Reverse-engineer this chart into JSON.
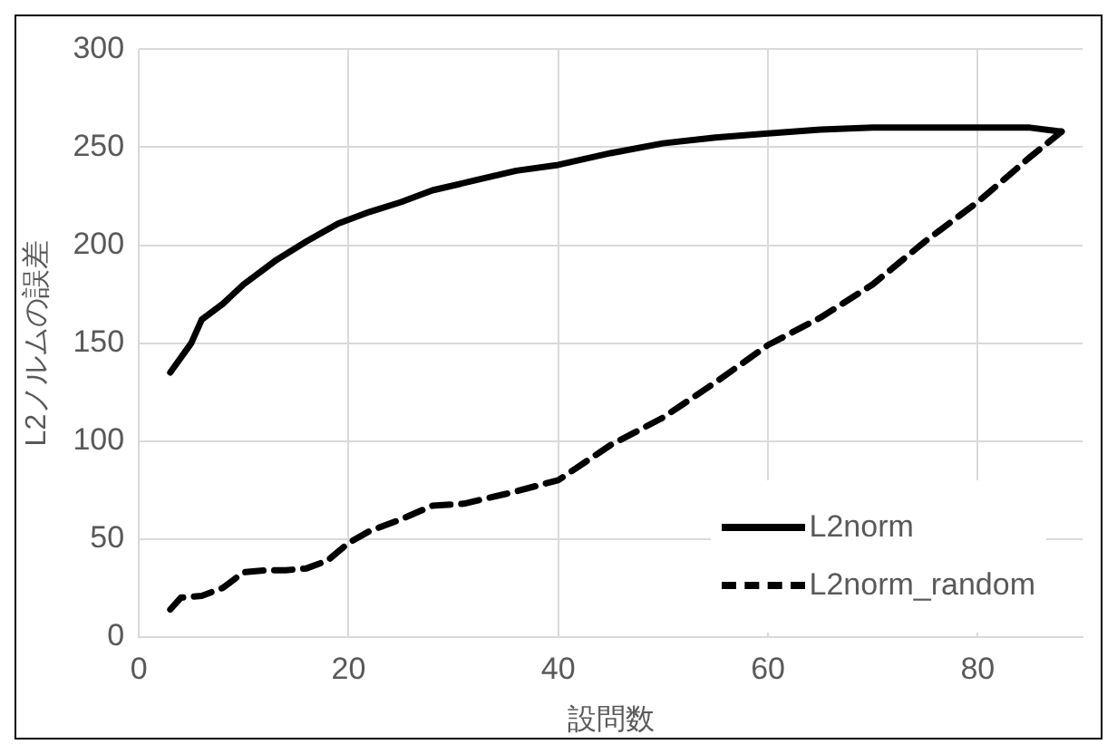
{
  "chart_data": {
    "type": "line",
    "xlabel": "設問数",
    "ylabel": "L2ノルムの誤差",
    "xlim": [
      0,
      90
    ],
    "xticks": [
      0,
      20,
      40,
      60,
      80
    ],
    "ylim": [
      0,
      300
    ],
    "yticks": [
      0,
      50,
      100,
      150,
      200,
      250,
      300
    ],
    "grid": true,
    "legend": "bottom right",
    "marker": "none",
    "series": [
      {
        "name": "L2norm",
        "color": "#000000",
        "line_style": "solid",
        "x": [
          3,
          5,
          6,
          8,
          10,
          13,
          16,
          19,
          22,
          25,
          28,
          32,
          36,
          40,
          45,
          50,
          55,
          60,
          65,
          70,
          75,
          80,
          85,
          88
        ],
        "values": [
          135,
          150,
          162,
          170,
          180,
          192,
          202,
          211,
          217,
          222,
          228,
          233,
          238,
          241,
          247,
          252,
          255,
          257,
          259,
          260,
          260,
          260,
          260,
          258
        ]
      },
      {
        "name": "L2norm_random",
        "color": "#000000",
        "line_style": "dashed",
        "x": [
          3,
          4,
          6,
          8,
          10,
          12,
          14,
          16,
          18,
          20,
          22,
          25,
          28,
          31,
          35,
          40,
          45,
          50,
          55,
          60,
          65,
          70,
          75,
          80,
          85,
          88
        ],
        "values": [
          14,
          20,
          21,
          25,
          33,
          34,
          34,
          35,
          39,
          48,
          54,
          60,
          67,
          68,
          73,
          80,
          98,
          112,
          130,
          149,
          163,
          180,
          202,
          222,
          245,
          258
        ]
      }
    ]
  }
}
